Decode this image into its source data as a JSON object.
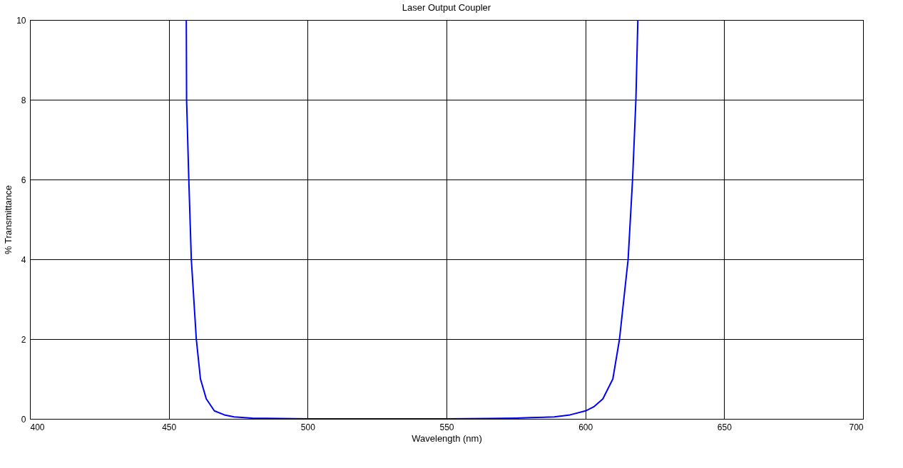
{
  "chart_data": {
    "type": "line",
    "title": "Laser Output Coupler",
    "xlabel": "Wavelength (nm)",
    "ylabel": "% Transmittance",
    "xlim": [
      400,
      700
    ],
    "xticks": [
      400,
      450,
      500,
      550,
      600,
      650,
      700
    ],
    "ylim": [
      0,
      10
    ],
    "yticks": [
      0,
      2,
      4,
      6,
      8,
      10
    ],
    "grid": true,
    "marker": "none",
    "line_style": "solid",
    "series": [
      {
        "color": "#0000ff",
        "x": [
          456.3,
          456.4,
          457.2,
          458.1,
          459.9,
          461.4,
          463.5,
          466.4,
          470,
          473.5,
          480,
          490,
          500,
          550,
          565,
          575,
          580,
          588.8,
          594.5,
          600.1,
          603,
          606.3,
          609.9,
          612.3,
          615.4,
          617,
          618.2,
          618.9
        ],
        "values": [
          10,
          8,
          6,
          4,
          2,
          1,
          0.5,
          0.2,
          0.1,
          0.05,
          0.02,
          0.01,
          0,
          0,
          0.01,
          0.02,
          0.03,
          0.05,
          0.1,
          0.2,
          0.3,
          0.5,
          1,
          2,
          4,
          6,
          8,
          10
        ]
      }
    ]
  }
}
